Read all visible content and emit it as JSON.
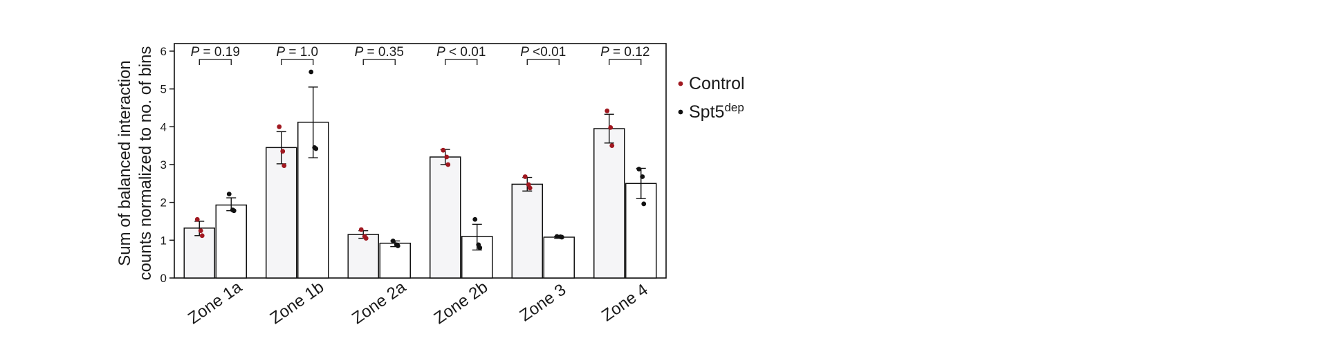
{
  "chart_data": {
    "type": "bar",
    "ylabel_line1": "Sum of balanced interaction",
    "ylabel_line2": "counts normalized to no. of bins",
    "ylim": [
      0,
      6.2
    ],
    "yticks": [
      0,
      1,
      2,
      3,
      4,
      5,
      6
    ],
    "categories": [
      "Zone 1a",
      "Zone 1b",
      "Zone 2a",
      "Zone 2b",
      "Zone 3",
      "Zone 4"
    ],
    "p_values": [
      {
        "italic": "P",
        "rest": " = 0.19"
      },
      {
        "italic": "P",
        "rest": " = 1.0"
      },
      {
        "italic": "P",
        "rest": " = 0.35"
      },
      {
        "italic": "P",
        "rest": " < 0.01"
      },
      {
        "italic": "P",
        "rest": " <0.01"
      },
      {
        "italic": "P",
        "rest": " = 0.12"
      }
    ],
    "series": [
      {
        "name": "Control",
        "name_sup": "",
        "bar_fill": "#f5f5f7",
        "dot_color": "#a01820",
        "values": [
          1.32,
          3.45,
          1.15,
          3.2,
          2.48,
          3.95
        ],
        "err_low": [
          1.12,
          3.02,
          1.05,
          3.0,
          2.3,
          3.57
        ],
        "err_high": [
          1.5,
          3.87,
          1.25,
          3.4,
          2.66,
          4.33
        ],
        "points": [
          [
            1.55,
            1.25,
            1.12
          ],
          [
            4.0,
            3.35,
            2.97
          ],
          [
            1.28,
            1.1,
            1.05
          ],
          [
            3.38,
            3.2,
            3.0
          ],
          [
            2.68,
            2.47,
            2.38
          ],
          [
            4.42,
            3.98,
            3.5
          ]
        ]
      },
      {
        "name": "Spt5",
        "name_sup": "dep",
        "bar_fill": "#ffffff",
        "dot_color": "#111111",
        "values": [
          1.93,
          4.12,
          0.92,
          1.1,
          1.08,
          2.5
        ],
        "err_low": [
          1.78,
          3.18,
          0.83,
          0.74,
          1.05,
          2.1
        ],
        "err_high": [
          2.12,
          5.05,
          0.98,
          1.42,
          1.1,
          2.9
        ],
        "points": [
          [
            2.22,
            1.8,
            1.78
          ],
          [
            5.45,
            3.45,
            3.42
          ],
          [
            0.98,
            0.88,
            0.85
          ],
          [
            1.55,
            0.88,
            0.8
          ],
          [
            1.1,
            1.09,
            1.08
          ],
          [
            2.88,
            2.68,
            1.96
          ]
        ]
      }
    ],
    "legend_position": "right"
  }
}
